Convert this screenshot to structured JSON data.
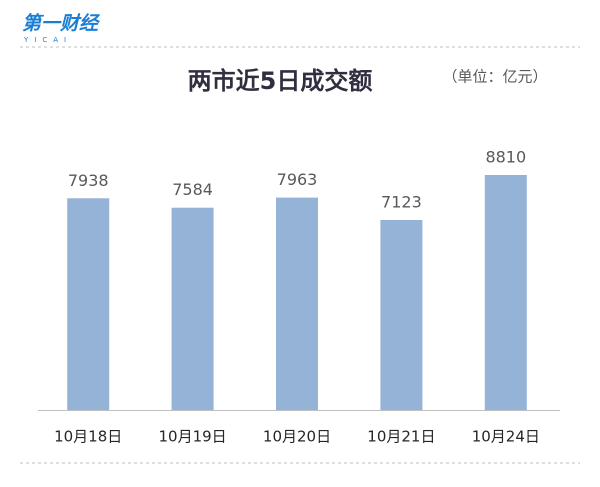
{
  "logo": {
    "name": "第一财经",
    "sub": "YICAI"
  },
  "chart_data": {
    "type": "bar",
    "title": "两市近5日成交额",
    "subtitle": "（单位：亿元）",
    "categories": [
      "10月18日",
      "10月19日",
      "10月20日",
      "10月21日",
      "10月24日"
    ],
    "values": [
      7938,
      7584,
      7963,
      7123,
      8810
    ],
    "color": "#95b3d7"
  }
}
